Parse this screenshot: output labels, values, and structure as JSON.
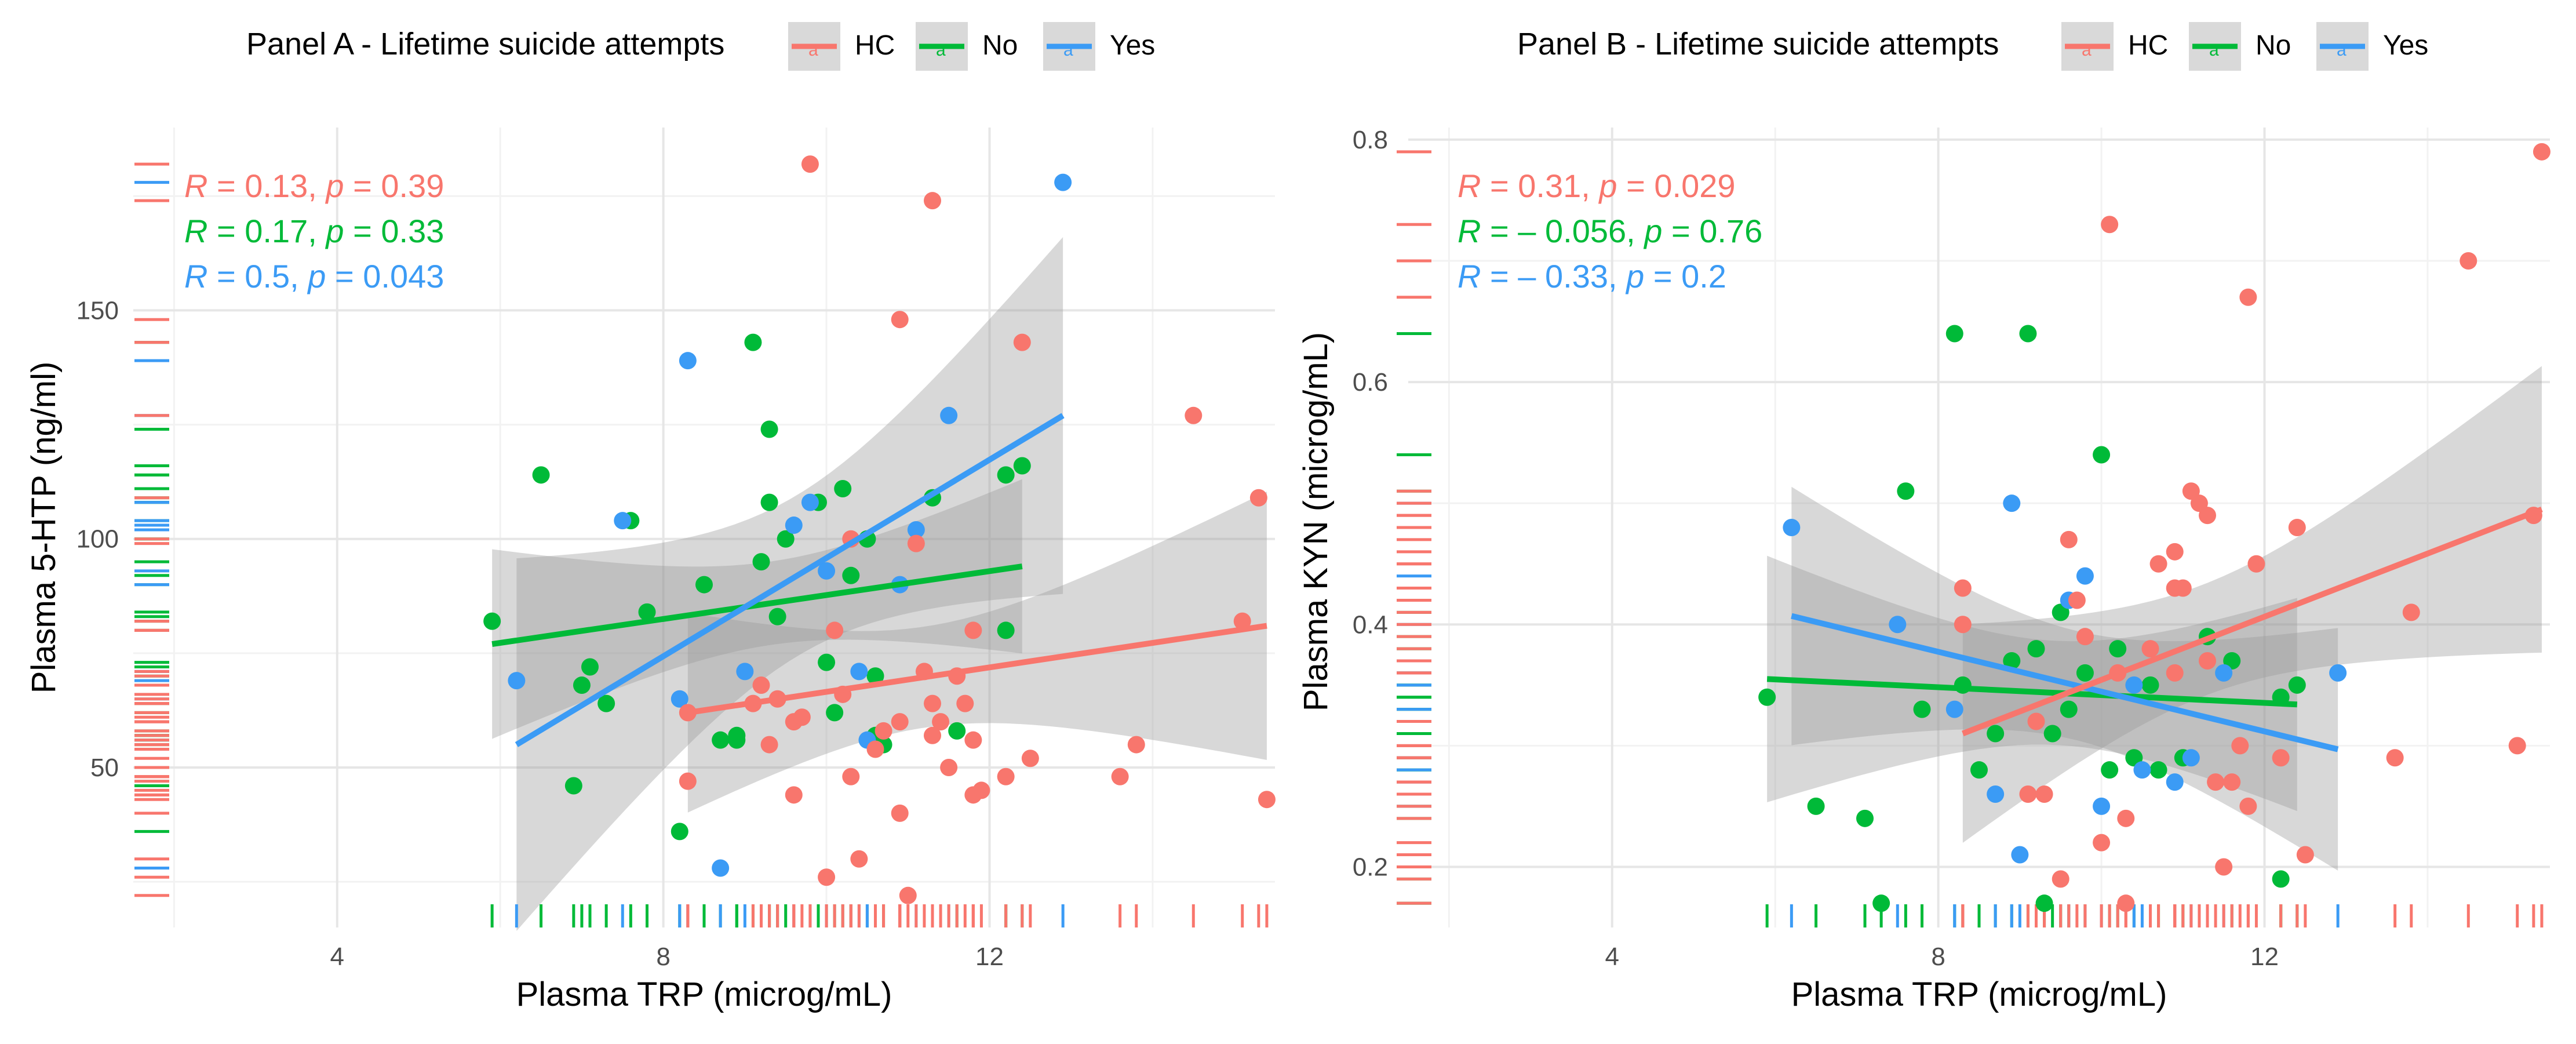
{
  "chart_data": [
    {
      "type": "scatter",
      "panel": "A",
      "legend_title": "Panel A - Lifetime suicide attempts",
      "legend": [
        {
          "label": "HC",
          "key_glyph": "a",
          "color": "#F8766D"
        },
        {
          "label": "No",
          "key_glyph": "a",
          "color": "#00BA38"
        },
        {
          "label": "Yes",
          "key_glyph": "a",
          "color": "#3B9BF5"
        }
      ],
      "xlabel": "Plasma TRP (microg/mL)",
      "ylabel": "Plasma 5-HTP (ng/ml)",
      "xlim": [
        1.5,
        15.5
      ],
      "ylim": [
        15,
        190
      ],
      "x_ticks": [
        4,
        8,
        12
      ],
      "x_tick_labels": [
        "4",
        "8",
        "12"
      ],
      "y_ticks": [
        50,
        100,
        150
      ],
      "y_tick_labels": [
        "50",
        "100",
        "150"
      ],
      "grid": true,
      "stats": [
        {
          "group": "HC",
          "color": "#F8766D",
          "R": "0.13",
          "p": "0.39"
        },
        {
          "group": "No",
          "color": "#00BA38",
          "R": "0.17",
          "p": "0.33"
        },
        {
          "group": "Yes",
          "color": "#3B9BF5",
          "R": "0.5",
          "p": "0.043"
        }
      ],
      "series": [
        {
          "name": "No",
          "color": "#00BA38",
          "points": [
            [
              5.9,
              82
            ],
            [
              6.5,
              114
            ],
            [
              6.9,
              46
            ],
            [
              7.0,
              68
            ],
            [
              7.1,
              72
            ],
            [
              7.3,
              64
            ],
            [
              7.6,
              104
            ],
            [
              7.8,
              84
            ],
            [
              8.2,
              36
            ],
            [
              8.5,
              90
            ],
            [
              8.7,
              56
            ],
            [
              8.9,
              57
            ],
            [
              8.9,
              56
            ],
            [
              9.1,
              143
            ],
            [
              9.2,
              95
            ],
            [
              9.3,
              124
            ],
            [
              9.3,
              108
            ],
            [
              9.4,
              83
            ],
            [
              9.5,
              100
            ],
            [
              9.9,
              108
            ],
            [
              10.0,
              73
            ],
            [
              10.1,
              62
            ],
            [
              10.2,
              111
            ],
            [
              10.3,
              92
            ],
            [
              10.5,
              100
            ],
            [
              10.6,
              57
            ],
            [
              10.6,
              70
            ],
            [
              10.7,
              55
            ],
            [
              11.3,
              109
            ],
            [
              11.6,
              58
            ],
            [
              12.2,
              80
            ],
            [
              12.2,
              114
            ],
            [
              12.4,
              116
            ]
          ],
          "fit": {
            "x": [
              5.9,
              12.4
            ],
            "y": [
              77,
              94
            ]
          }
        },
        {
          "name": "Yes",
          "color": "#3B9BF5",
          "points": [
            [
              6.2,
              69
            ],
            [
              7.5,
              104
            ],
            [
              8.2,
              65
            ],
            [
              8.3,
              139
            ],
            [
              8.7,
              28
            ],
            [
              9.0,
              71
            ],
            [
              9.6,
              103
            ],
            [
              9.8,
              108
            ],
            [
              10.0,
              93
            ],
            [
              10.4,
              71
            ],
            [
              10.5,
              56
            ],
            [
              10.9,
              90
            ],
            [
              11.1,
              102
            ],
            [
              11.5,
              127
            ],
            [
              12.9,
              178
            ]
          ],
          "fit": {
            "x": [
              6.2,
              12.9
            ],
            "y": [
              55,
              127
            ]
          }
        },
        {
          "name": "HC",
          "color": "#F8766D",
          "points": [
            [
              8.3,
              47
            ],
            [
              8.3,
              62
            ],
            [
              9.1,
              64
            ],
            [
              9.2,
              68
            ],
            [
              9.3,
              55
            ],
            [
              9.4,
              65
            ],
            [
              9.6,
              60
            ],
            [
              9.6,
              44
            ],
            [
              9.7,
              61
            ],
            [
              9.8,
              182
            ],
            [
              10.0,
              26
            ],
            [
              10.1,
              80
            ],
            [
              10.2,
              66
            ],
            [
              10.3,
              48
            ],
            [
              10.3,
              100
            ],
            [
              10.4,
              30
            ],
            [
              10.6,
              54
            ],
            [
              10.7,
              58
            ],
            [
              10.9,
              148
            ],
            [
              10.9,
              60
            ],
            [
              10.9,
              40
            ],
            [
              11.0,
              22
            ],
            [
              11.1,
              99
            ],
            [
              11.2,
              71
            ],
            [
              11.3,
              57
            ],
            [
              11.3,
              64
            ],
            [
              11.3,
              174
            ],
            [
              11.4,
              60
            ],
            [
              11.5,
              50
            ],
            [
              11.6,
              70
            ],
            [
              11.7,
              64
            ],
            [
              11.8,
              80
            ],
            [
              11.8,
              44
            ],
            [
              11.8,
              56
            ],
            [
              11.9,
              45
            ],
            [
              12.2,
              48
            ],
            [
              12.4,
              143
            ],
            [
              12.5,
              52
            ],
            [
              13.6,
              48
            ],
            [
              13.8,
              55
            ],
            [
              14.5,
              127
            ],
            [
              15.1,
              82
            ],
            [
              15.3,
              109
            ],
            [
              15.4,
              43
            ]
          ],
          "fit": {
            "x": [
              8.3,
              15.4
            ],
            "y": [
              62,
              81
            ]
          }
        }
      ]
    },
    {
      "type": "scatter",
      "panel": "B",
      "legend_title": "Panel B - Lifetime suicide attempts",
      "legend": [
        {
          "label": "HC",
          "key_glyph": "a",
          "color": "#F8766D"
        },
        {
          "label": "No",
          "key_glyph": "a",
          "color": "#00BA38"
        },
        {
          "label": "Yes",
          "key_glyph": "a",
          "color": "#3B9BF5"
        }
      ],
      "xlabel": "Plasma TRP (microg/mL)",
      "ylabel": "Plasma KYN (microg/mL)",
      "xlim": [
        1.5,
        15.5
      ],
      "ylim": [
        0.15,
        0.81
      ],
      "x_ticks": [
        4,
        8,
        12
      ],
      "x_tick_labels": [
        "4",
        "8",
        "12"
      ],
      "y_ticks": [
        0.2,
        0.4,
        0.6,
        0.8
      ],
      "y_tick_labels": [
        "0.2",
        "0.4",
        "0.6",
        "0.8"
      ],
      "grid": true,
      "stats": [
        {
          "group": "HC",
          "color": "#F8766D",
          "R": "0.31",
          "p": "0.029"
        },
        {
          "group": "No",
          "color": "#00BA38",
          "R": "– 0.056",
          "p": "0.76"
        },
        {
          "group": "Yes",
          "color": "#3B9BF5",
          "R": "– 0.33",
          "p": "0.2"
        }
      ],
      "series": [
        {
          "name": "No",
          "color": "#00BA38",
          "points": [
            [
              5.9,
              0.34
            ],
            [
              6.5,
              0.25
            ],
            [
              7.1,
              0.24
            ],
            [
              7.3,
              0.17
            ],
            [
              7.6,
              0.51
            ],
            [
              7.8,
              0.33
            ],
            [
              8.2,
              0.64
            ],
            [
              8.3,
              0.35
            ],
            [
              8.5,
              0.28
            ],
            [
              8.7,
              0.31
            ],
            [
              8.9,
              0.37
            ],
            [
              9.1,
              0.64
            ],
            [
              9.2,
              0.38
            ],
            [
              9.3,
              0.17
            ],
            [
              9.4,
              0.31
            ],
            [
              9.5,
              0.41
            ],
            [
              9.6,
              0.33
            ],
            [
              9.8,
              0.36
            ],
            [
              10.0,
              0.54
            ],
            [
              10.1,
              0.28
            ],
            [
              10.2,
              0.38
            ],
            [
              10.4,
              0.29
            ],
            [
              10.6,
              0.35
            ],
            [
              10.7,
              0.28
            ],
            [
              11.0,
              0.29
            ],
            [
              11.3,
              0.39
            ],
            [
              11.6,
              0.37
            ],
            [
              12.2,
              0.19
            ],
            [
              12.2,
              0.34
            ],
            [
              12.4,
              0.35
            ]
          ],
          "fit": {
            "x": [
              5.9,
              12.4
            ],
            "y": [
              0.355,
              0.334
            ]
          }
        },
        {
          "name": "Yes",
          "color": "#3B9BF5",
          "points": [
            [
              6.2,
              0.48
            ],
            [
              7.5,
              0.4
            ],
            [
              8.2,
              0.33
            ],
            [
              8.7,
              0.26
            ],
            [
              8.9,
              0.5
            ],
            [
              9.0,
              0.21
            ],
            [
              9.6,
              0.42
            ],
            [
              9.8,
              0.44
            ],
            [
              10.0,
              0.25
            ],
            [
              10.4,
              0.35
            ],
            [
              10.5,
              0.28
            ],
            [
              10.9,
              0.27
            ],
            [
              11.1,
              0.29
            ],
            [
              11.5,
              0.36
            ],
            [
              12.9,
              0.36
            ]
          ],
          "fit": {
            "x": [
              6.2,
              12.9
            ],
            "y": [
              0.407,
              0.297
            ]
          }
        },
        {
          "name": "HC",
          "color": "#F8766D",
          "points": [
            [
              8.3,
              0.43
            ],
            [
              8.3,
              0.4
            ],
            [
              9.1,
              0.26
            ],
            [
              9.2,
              0.32
            ],
            [
              9.3,
              0.26
            ],
            [
              9.5,
              0.19
            ],
            [
              9.6,
              0.47
            ],
            [
              9.7,
              0.42
            ],
            [
              9.8,
              0.39
            ],
            [
              10.0,
              0.22
            ],
            [
              10.1,
              0.73
            ],
            [
              10.2,
              0.36
            ],
            [
              10.3,
              0.17
            ],
            [
              10.3,
              0.24
            ],
            [
              10.6,
              0.38
            ],
            [
              10.7,
              0.45
            ],
            [
              10.9,
              0.46
            ],
            [
              10.9,
              0.36
            ],
            [
              10.9,
              0.43
            ],
            [
              11.0,
              0.43
            ],
            [
              11.1,
              0.51
            ],
            [
              11.2,
              0.5
            ],
            [
              11.3,
              0.49
            ],
            [
              11.3,
              0.37
            ],
            [
              11.4,
              0.27
            ],
            [
              11.5,
              0.2
            ],
            [
              11.6,
              0.27
            ],
            [
              11.7,
              0.3
            ],
            [
              11.8,
              0.67
            ],
            [
              11.8,
              0.25
            ],
            [
              11.9,
              0.45
            ],
            [
              12.2,
              0.29
            ],
            [
              12.4,
              0.48
            ],
            [
              12.5,
              0.21
            ],
            [
              13.6,
              0.29
            ],
            [
              13.8,
              0.41
            ],
            [
              14.5,
              0.7
            ],
            [
              15.1,
              0.3
            ],
            [
              15.3,
              0.49
            ],
            [
              15.4,
              0.79
            ]
          ],
          "fit": {
            "x": [
              8.3,
              15.4
            ],
            "y": [
              0.31,
              0.495
            ]
          }
        }
      ]
    }
  ]
}
